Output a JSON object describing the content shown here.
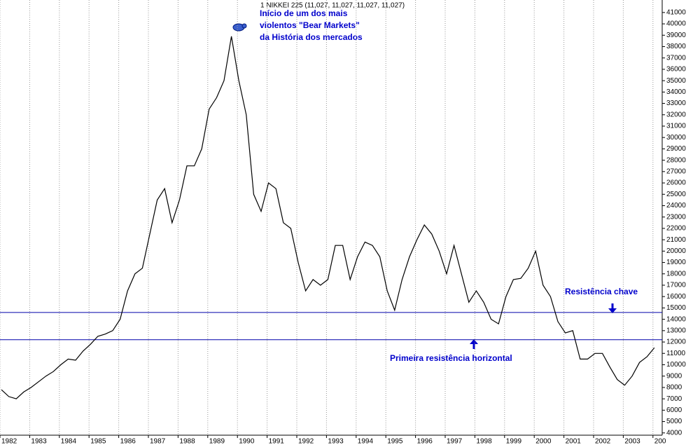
{
  "chart_data": {
    "type": "line",
    "title": "1 NIKKEI 225 (11,027, 11,027, 11,027, 11,027)",
    "annotations": [
      "Início de um dos mais",
      "violentos \"Bear Markets\"",
      "da História dos mercados",
      "Resistência chave",
      "Primeira resistência horizontal"
    ],
    "categories": [
      "1982",
      null,
      null,
      null,
      "1983",
      null,
      null,
      null,
      "1984",
      null,
      null,
      null,
      "1985",
      null,
      null,
      null,
      "1986",
      null,
      null,
      null,
      "1987",
      null,
      null,
      null,
      "1988",
      null,
      null,
      null,
      "1989",
      null,
      null,
      null,
      "1990",
      null,
      null,
      null,
      "1991",
      null,
      null,
      null,
      "1992",
      null,
      null,
      null,
      "1993",
      null,
      null,
      null,
      "1994",
      null,
      null,
      null,
      "1995",
      null,
      null,
      null,
      "1996",
      null,
      null,
      null,
      "1997",
      null,
      null,
      null,
      "1998",
      null,
      null,
      null,
      "1999",
      null,
      null,
      null,
      "2000",
      null,
      null,
      null,
      "2001",
      null,
      null,
      null,
      "2002",
      null,
      null,
      null,
      "2003",
      null,
      null,
      null,
      "200"
    ],
    "series": [
      {
        "name": "NIKKEI 225",
        "color": "#000000",
        "values": [
          7800,
          7200,
          7000,
          7600,
          8000,
          8500,
          9000,
          9400,
          10000,
          10500,
          10400,
          11200,
          11800,
          12500,
          12700,
          13000,
          14000,
          16500,
          18000,
          18500,
          21500,
          24500,
          25500,
          22500,
          24500,
          27500,
          27500,
          29000,
          32500,
          33500,
          35000,
          38900,
          35000,
          32000,
          25000,
          23500,
          26000,
          25500,
          22500,
          22000,
          19000,
          16500,
          17500,
          17000,
          17500,
          20500,
          20500,
          17500,
          19500,
          20800,
          20500,
          19500,
          16500,
          14800,
          17500,
          19500,
          21000,
          22300,
          21500,
          20000,
          18000,
          20500,
          18000,
          15500,
          16500,
          15500,
          14000,
          13600,
          16000,
          17500,
          17600,
          18500,
          20000,
          17000,
          16000,
          13800,
          12800,
          13000,
          10500,
          10500,
          11000,
          11000,
          9800,
          8700,
          8200,
          9000,
          10200,
          10700,
          11500
        ]
      }
    ],
    "hlines": [
      14600,
      12200
    ],
    "hline_color": "#0000aa",
    "ylim": [
      3800,
      42100
    ],
    "yticks": [
      4000,
      5000,
      6000,
      7000,
      8000,
      9000,
      10000,
      11000,
      12000,
      13000,
      14000,
      15000,
      16000,
      17000,
      18000,
      19000,
      20000,
      21000,
      22000,
      23000,
      24000,
      25000,
      26000,
      27000,
      28000,
      29000,
      30000,
      31000,
      32000,
      33000,
      34000,
      35000,
      36000,
      37000,
      38000,
      39000,
      40000,
      41000
    ],
    "grid": true
  }
}
